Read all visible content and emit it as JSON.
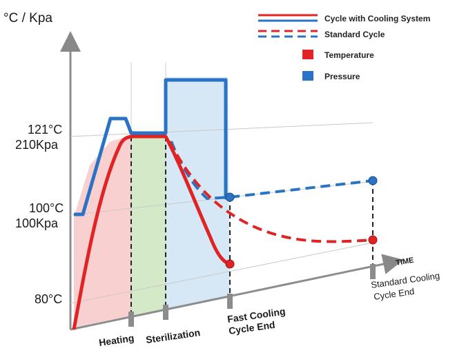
{
  "chart_data": {
    "type": "line",
    "title": "",
    "ylabel": "°C / Kpa",
    "xlabel": "TIME",
    "y_ticks": [
      {
        "label_line1": "121°C",
        "label_line2": "210Kpa"
      },
      {
        "label_line1": "100°C",
        "label_line2": "100Kpa"
      },
      {
        "label_line1": "80°C",
        "label_line2": ""
      }
    ],
    "x_ticks": [
      {
        "label_line1": "Heating",
        "label_line2": ""
      },
      {
        "label_line1": "Sterilization",
        "label_line2": ""
      },
      {
        "label_line1": "Fast Cooling",
        "label_line2": "Cycle End"
      },
      {
        "label_line1": "Standard Cooling",
        "label_line2": "Cycle End"
      }
    ],
    "legend": [
      {
        "label": "Cycle with Cooling System",
        "style": "solid-lines"
      },
      {
        "label": "Standard Cycle",
        "style": "dashed-lines"
      },
      {
        "label": "Temperature",
        "color": "#e02424"
      },
      {
        "label": "Pressure",
        "color": "#2a72c4"
      }
    ],
    "legend_placement": "top-right",
    "phase_colors": {
      "heating": "#f7c8c8",
      "sterilization": "#cfe7c2",
      "cooling": "#cfe3f3"
    },
    "series_colors": {
      "temperature": "#e02424",
      "pressure": "#2a72c4"
    }
  }
}
